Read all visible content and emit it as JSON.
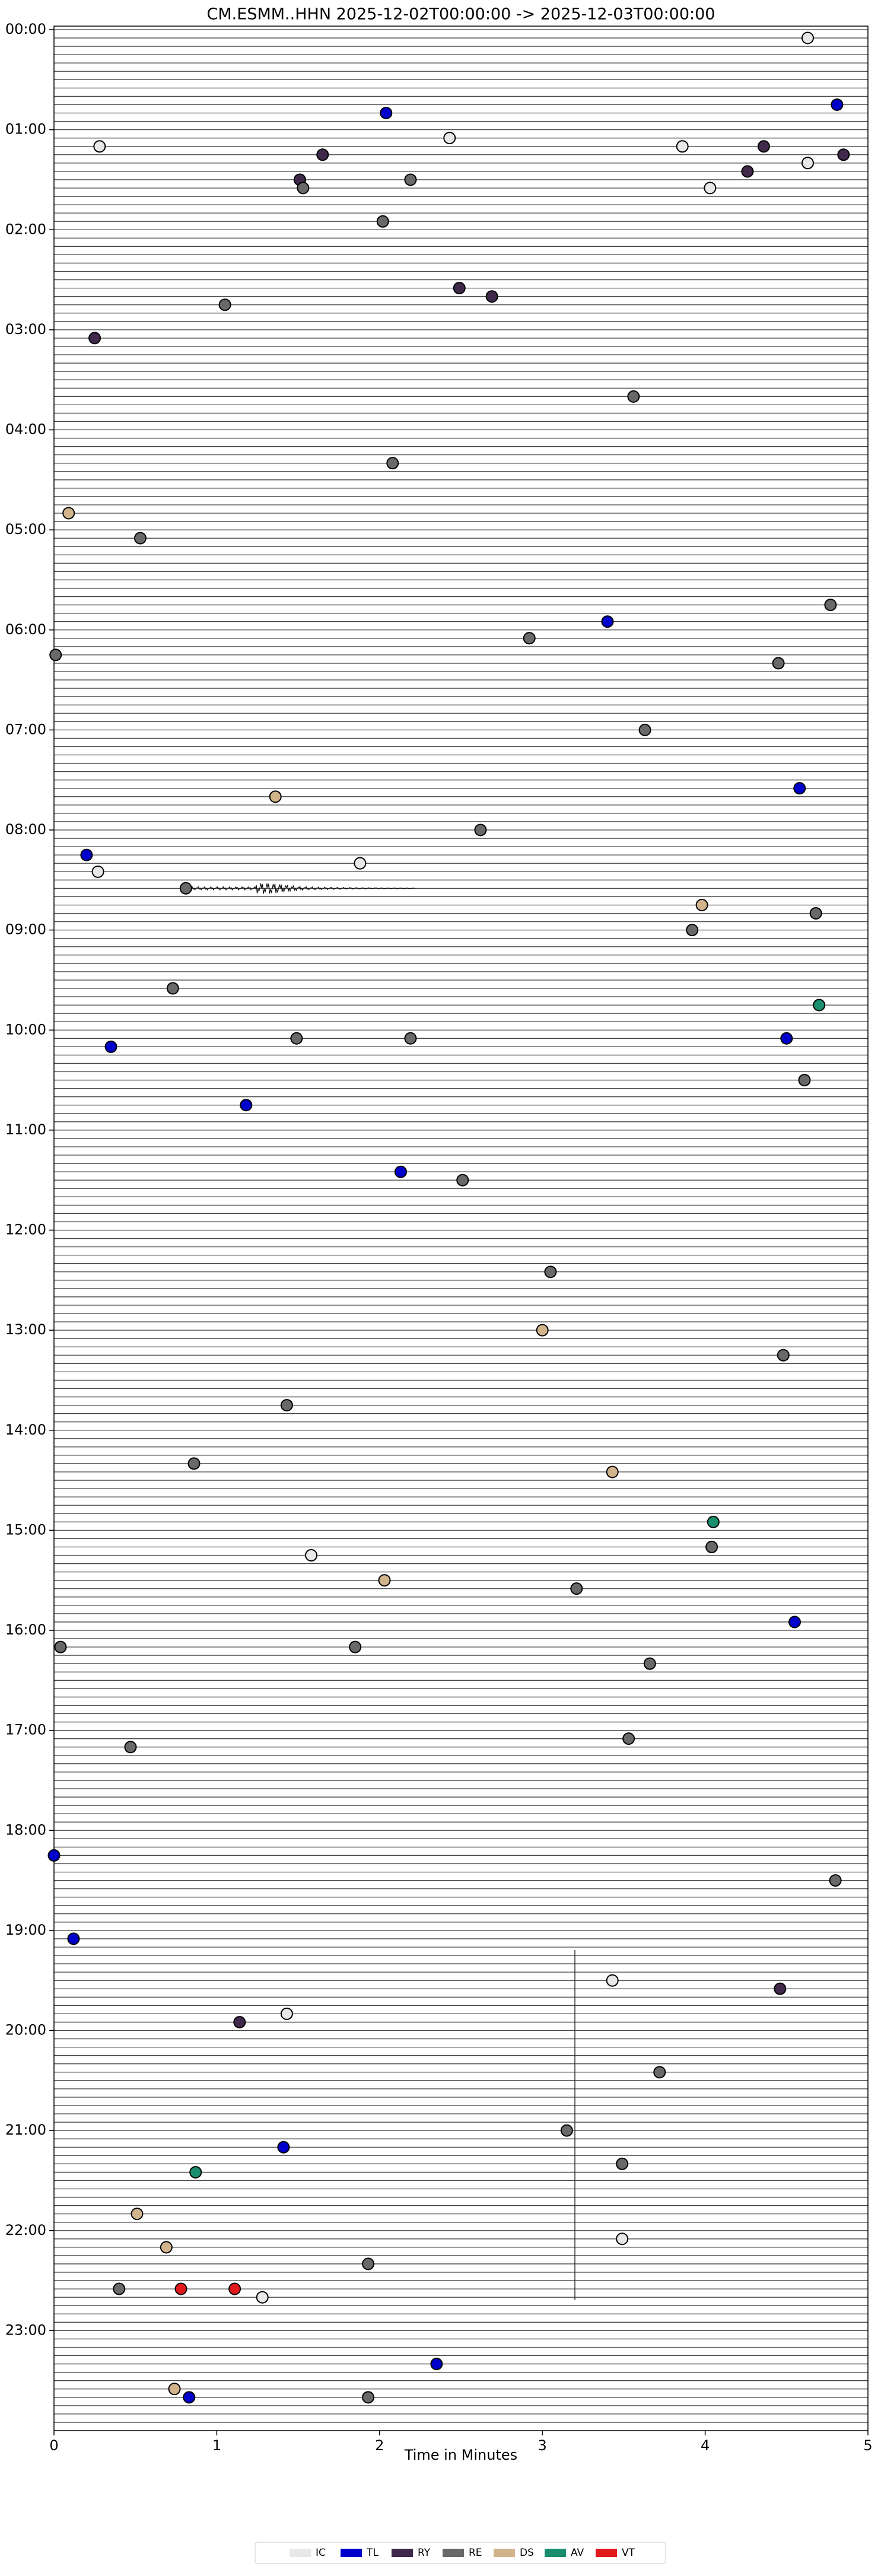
{
  "chart_data": {
    "type": "scatter",
    "title": "CM.ESMM..HHN  2025-12-02T00:00:00 -> 2025-12-03T00:00:00",
    "x_label": "Time in Minutes",
    "xlim": [
      0,
      5
    ],
    "xticks": [
      0,
      1,
      2,
      3,
      4,
      5
    ],
    "ylim": [
      24,
      0
    ],
    "yticks": [
      {
        "value": 0,
        "label": "00:00"
      },
      {
        "value": 1,
        "label": "01:00"
      },
      {
        "value": 2,
        "label": "02:00"
      },
      {
        "value": 3,
        "label": "03:00"
      },
      {
        "value": 4,
        "label": "04:00"
      },
      {
        "value": 5,
        "label": "05:00"
      },
      {
        "value": 6,
        "label": "06:00"
      },
      {
        "value": 7,
        "label": "07:00"
      },
      {
        "value": 8,
        "label": "08:00"
      },
      {
        "value": 9,
        "label": "09:00"
      },
      {
        "value": 10,
        "label": "10:00"
      },
      {
        "value": 11,
        "label": "11:00"
      },
      {
        "value": 12,
        "label": "12:00"
      },
      {
        "value": 13,
        "label": "13:00"
      },
      {
        "value": 14,
        "label": "14:00"
      },
      {
        "value": 15,
        "label": "15:00"
      },
      {
        "value": 16,
        "label": "16:00"
      },
      {
        "value": 17,
        "label": "17:00"
      },
      {
        "value": 18,
        "label": "18:00"
      },
      {
        "value": 19,
        "label": "19:00"
      },
      {
        "value": 20,
        "label": "20:00"
      },
      {
        "value": 21,
        "label": "21:00"
      },
      {
        "value": 22,
        "label": "22:00"
      },
      {
        "value": 23,
        "label": "23:00"
      }
    ],
    "legend": "lower center",
    "series": [
      {
        "name": "IC",
        "color": "#e8e8e8",
        "x": [
          4.63,
          2.43,
          0.28,
          3.86,
          4.63,
          4.03,
          1.88,
          0.27,
          1.58,
          3.43,
          1.43,
          3.49,
          1.28
        ],
        "values": [
          0.083,
          1.083,
          1.167,
          1.167,
          1.333,
          1.583,
          8.333,
          8.417,
          15.25,
          19.5,
          19.833,
          22.083,
          22.667
        ]
      },
      {
        "name": "TL",
        "color": "#0000cc",
        "x": [
          4.81,
          2.04,
          3.4,
          4.58,
          0.2,
          4.5,
          0.35,
          1.18,
          2.13,
          4.55,
          0,
          0.12,
          1.41,
          2.35,
          0.83
        ],
        "values": [
          0.75,
          0.833,
          5.917,
          7.583,
          8.25,
          10.083,
          10.167,
          10.75,
          11.417,
          15.917,
          18.25,
          19.083,
          21.167,
          23.333,
          23.667
        ]
      },
      {
        "name": "RY",
        "color": "#40294a",
        "x": [
          4.36,
          1.65,
          4.85,
          4.26,
          1.51,
          2.49,
          2.69,
          0.25,
          4.46,
          1.14
        ],
        "values": [
          1.167,
          1.25,
          1.25,
          1.417,
          1.5,
          2.583,
          2.667,
          3.083,
          19.583,
          19.917
        ]
      },
      {
        "name": "RE",
        "color": "#696969",
        "x": [
          2.19,
          1.53,
          2.02,
          1.05,
          3.56,
          2.08,
          0.53,
          4.77,
          2.92,
          0.01,
          4.45,
          3.63,
          2.62,
          0.81,
          4.68,
          3.92,
          0.73,
          1.49,
          2.19,
          4.61,
          2.51,
          3.05,
          4.48,
          1.43,
          0.86,
          4.04,
          3.21,
          0.04,
          1.85,
          3.66,
          3.53,
          0.47,
          4.8,
          3.72,
          3.15,
          3.49,
          1.93,
          0.4,
          1.93
        ],
        "values": [
          1.5,
          1.583,
          1.917,
          2.75,
          3.667,
          4.333,
          5.083,
          5.75,
          6.083,
          6.25,
          6.333,
          7,
          8,
          8.583,
          8.833,
          9,
          9.583,
          10.083,
          10.083,
          10.5,
          11.5,
          12.417,
          13.25,
          13.75,
          14.333,
          15.167,
          15.583,
          16.167,
          16.167,
          16.333,
          17.083,
          17.167,
          18.5,
          20.417,
          21,
          21.333,
          22.333,
          22.583,
          23.667
        ]
      },
      {
        "name": "DS",
        "color": "#d2b48c",
        "x": [
          0.09,
          1.36,
          3.98,
          3,
          3.43,
          2.03,
          0.51,
          0.69,
          0.74
        ],
        "values": [
          4.833,
          7.667,
          8.75,
          13,
          14.417,
          15.5,
          21.833,
          22.167,
          23.583
        ]
      },
      {
        "name": "AV",
        "color": "#1a8f6e",
        "x": [
          4.7,
          4.05,
          0.87
        ],
        "values": [
          9.75,
          14.917,
          21.417
        ]
      },
      {
        "name": "VT",
        "color": "#e31a1c",
        "x": [
          0.78,
          1.11
        ],
        "values": [
          22.583,
          22.583
        ]
      }
    ]
  }
}
